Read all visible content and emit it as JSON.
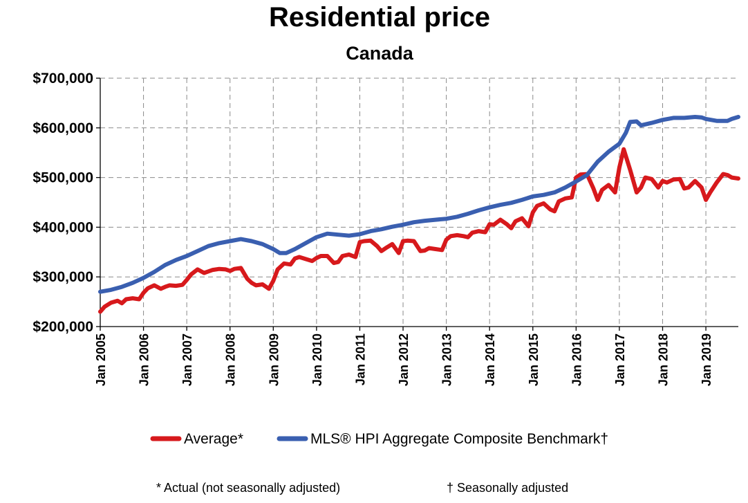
{
  "chart_data": {
    "type": "line",
    "title": "Residential price",
    "subtitle": "Canada",
    "xlabel": "",
    "ylabel": "",
    "ylim": [
      200000,
      700000
    ],
    "yticks": [
      "$200,000",
      "$300,000",
      "$400,000",
      "$500,000",
      "$600,000",
      "$700,000"
    ],
    "ytick_values": [
      200000,
      300000,
      400000,
      500000,
      600000,
      700000
    ],
    "xticks": [
      "Jan 2005",
      "Jan 2006",
      "Jan 2007",
      "Jan 2008",
      "Jan 2009",
      "Jan 2010",
      "Jan 2011",
      "Jan 2012",
      "Jan 2013",
      "Jan 2014",
      "Jan 2015",
      "Jan 2016",
      "Jan 2017",
      "Jan 2018",
      "Jan 2019"
    ],
    "xtick_values": [
      2005,
      2006,
      2007,
      2008,
      2009,
      2010,
      2011,
      2012,
      2013,
      2014,
      2015,
      2016,
      2017,
      2018,
      2019
    ],
    "xlim": [
      2005,
      2019.75
    ],
    "grid": true,
    "legend_position": "bottom",
    "series": [
      {
        "name": "Average*",
        "color": "#d7191c",
        "x": [
          2005.0,
          2005.1,
          2005.25,
          2005.4,
          2005.5,
          2005.6,
          2005.75,
          2005.9,
          2006.0,
          2006.1,
          2006.25,
          2006.4,
          2006.5,
          2006.6,
          2006.75,
          2006.9,
          2007.0,
          2007.1,
          2007.25,
          2007.4,
          2007.5,
          2007.6,
          2007.75,
          2007.9,
          2008.0,
          2008.1,
          2008.25,
          2008.4,
          2008.5,
          2008.6,
          2008.75,
          2008.9,
          2009.0,
          2009.1,
          2009.25,
          2009.4,
          2009.5,
          2009.6,
          2009.75,
          2009.9,
          2010.0,
          2010.1,
          2010.25,
          2010.4,
          2010.5,
          2010.6,
          2010.75,
          2010.9,
          2011.0,
          2011.1,
          2011.25,
          2011.4,
          2011.5,
          2011.6,
          2011.75,
          2011.9,
          2012.0,
          2012.1,
          2012.25,
          2012.4,
          2012.5,
          2012.6,
          2012.75,
          2012.9,
          2013.0,
          2013.1,
          2013.25,
          2013.4,
          2013.5,
          2013.6,
          2013.75,
          2013.9,
          2014.0,
          2014.1,
          2014.25,
          2014.4,
          2014.5,
          2014.6,
          2014.75,
          2014.9,
          2015.0,
          2015.1,
          2015.25,
          2015.4,
          2015.5,
          2015.6,
          2015.75,
          2015.9,
          2016.0,
          2016.1,
          2016.25,
          2016.4,
          2016.5,
          2016.6,
          2016.75,
          2016.9,
          2017.0,
          2017.1,
          2017.25,
          2017.4,
          2017.5,
          2017.6,
          2017.75,
          2017.9,
          2018.0,
          2018.1,
          2018.25,
          2018.4,
          2018.5,
          2018.6,
          2018.75,
          2018.9,
          2019.0,
          2019.1,
          2019.25,
          2019.4,
          2019.5,
          2019.6,
          2019.75
        ],
        "y": [
          230000,
          240000,
          248000,
          252000,
          247000,
          255000,
          257000,
          255000,
          268000,
          277000,
          283000,
          276000,
          280000,
          283000,
          282000,
          284000,
          294000,
          305000,
          315000,
          308000,
          311000,
          314000,
          316000,
          315000,
          312000,
          316000,
          318000,
          296000,
          288000,
          283000,
          285000,
          276000,
          292000,
          315000,
          327000,
          325000,
          337000,
          340000,
          336000,
          332000,
          338000,
          342000,
          342000,
          328000,
          330000,
          342000,
          345000,
          340000,
          370000,
          372000,
          373000,
          362000,
          352000,
          358000,
          366000,
          348000,
          372000,
          373000,
          372000,
          352000,
          353000,
          358000,
          356000,
          354000,
          375000,
          382000,
          384000,
          382000,
          380000,
          389000,
          392000,
          390000,
          406000,
          405000,
          415000,
          406000,
          398000,
          412000,
          418000,
          402000,
          430000,
          443000,
          448000,
          436000,
          432000,
          452000,
          458000,
          460000,
          500000,
          506000,
          507000,
          478000,
          455000,
          475000,
          485000,
          470000,
          520000,
          557000,
          515000,
          470000,
          480000,
          500000,
          497000,
          480000,
          493000,
          490000,
          496000,
          497000,
          478000,
          480000,
          493000,
          480000,
          455000,
          470000,
          490000,
          507000,
          505000,
          500000,
          498000
        ]
      },
      {
        "name": "MLS® HPI Aggregate Composite Benchmark†",
        "color": "#3a5fb0",
        "x": [
          2005.0,
          2005.25,
          2005.5,
          2005.75,
          2006.0,
          2006.25,
          2006.5,
          2006.75,
          2007.0,
          2007.25,
          2007.5,
          2007.75,
          2008.0,
          2008.25,
          2008.5,
          2008.75,
          2009.0,
          2009.15,
          2009.3,
          2009.5,
          2009.75,
          2010.0,
          2010.25,
          2010.5,
          2010.75,
          2011.0,
          2011.25,
          2011.5,
          2011.75,
          2012.0,
          2012.25,
          2012.5,
          2012.75,
          2013.0,
          2013.25,
          2013.5,
          2013.75,
          2014.0,
          2014.25,
          2014.5,
          2014.75,
          2015.0,
          2015.25,
          2015.5,
          2015.75,
          2016.0,
          2016.25,
          2016.5,
          2016.75,
          2017.0,
          2017.15,
          2017.25,
          2017.4,
          2017.5,
          2017.75,
          2018.0,
          2018.25,
          2018.5,
          2018.75,
          2018.9,
          2019.0,
          2019.25,
          2019.5,
          2019.6,
          2019.75
        ],
        "y": [
          270000,
          274000,
          280000,
          288000,
          298000,
          310000,
          324000,
          334000,
          342000,
          352000,
          362000,
          368000,
          372000,
          376000,
          372000,
          366000,
          356000,
          348000,
          348000,
          356000,
          368000,
          380000,
          387000,
          385000,
          383000,
          386000,
          392000,
          396000,
          401000,
          405000,
          410000,
          413000,
          415000,
          417000,
          421000,
          427000,
          434000,
          440000,
          445000,
          449000,
          455000,
          462000,
          465000,
          470000,
          480000,
          492000,
          505000,
          532000,
          552000,
          568000,
          590000,
          612000,
          613000,
          605000,
          610000,
          616000,
          620000,
          620000,
          622000,
          621000,
          618000,
          614000,
          614000,
          618000,
          622000
        ]
      }
    ]
  },
  "legend": {
    "items": [
      {
        "label": "Average*",
        "color": "#d7191c"
      },
      {
        "label": "MLS® HPI Aggregate Composite Benchmark†",
        "color": "#3a5fb0"
      }
    ]
  },
  "footnotes": {
    "left": "* Actual (not seasonally adjusted)",
    "right": "† Seasonally adjusted"
  }
}
